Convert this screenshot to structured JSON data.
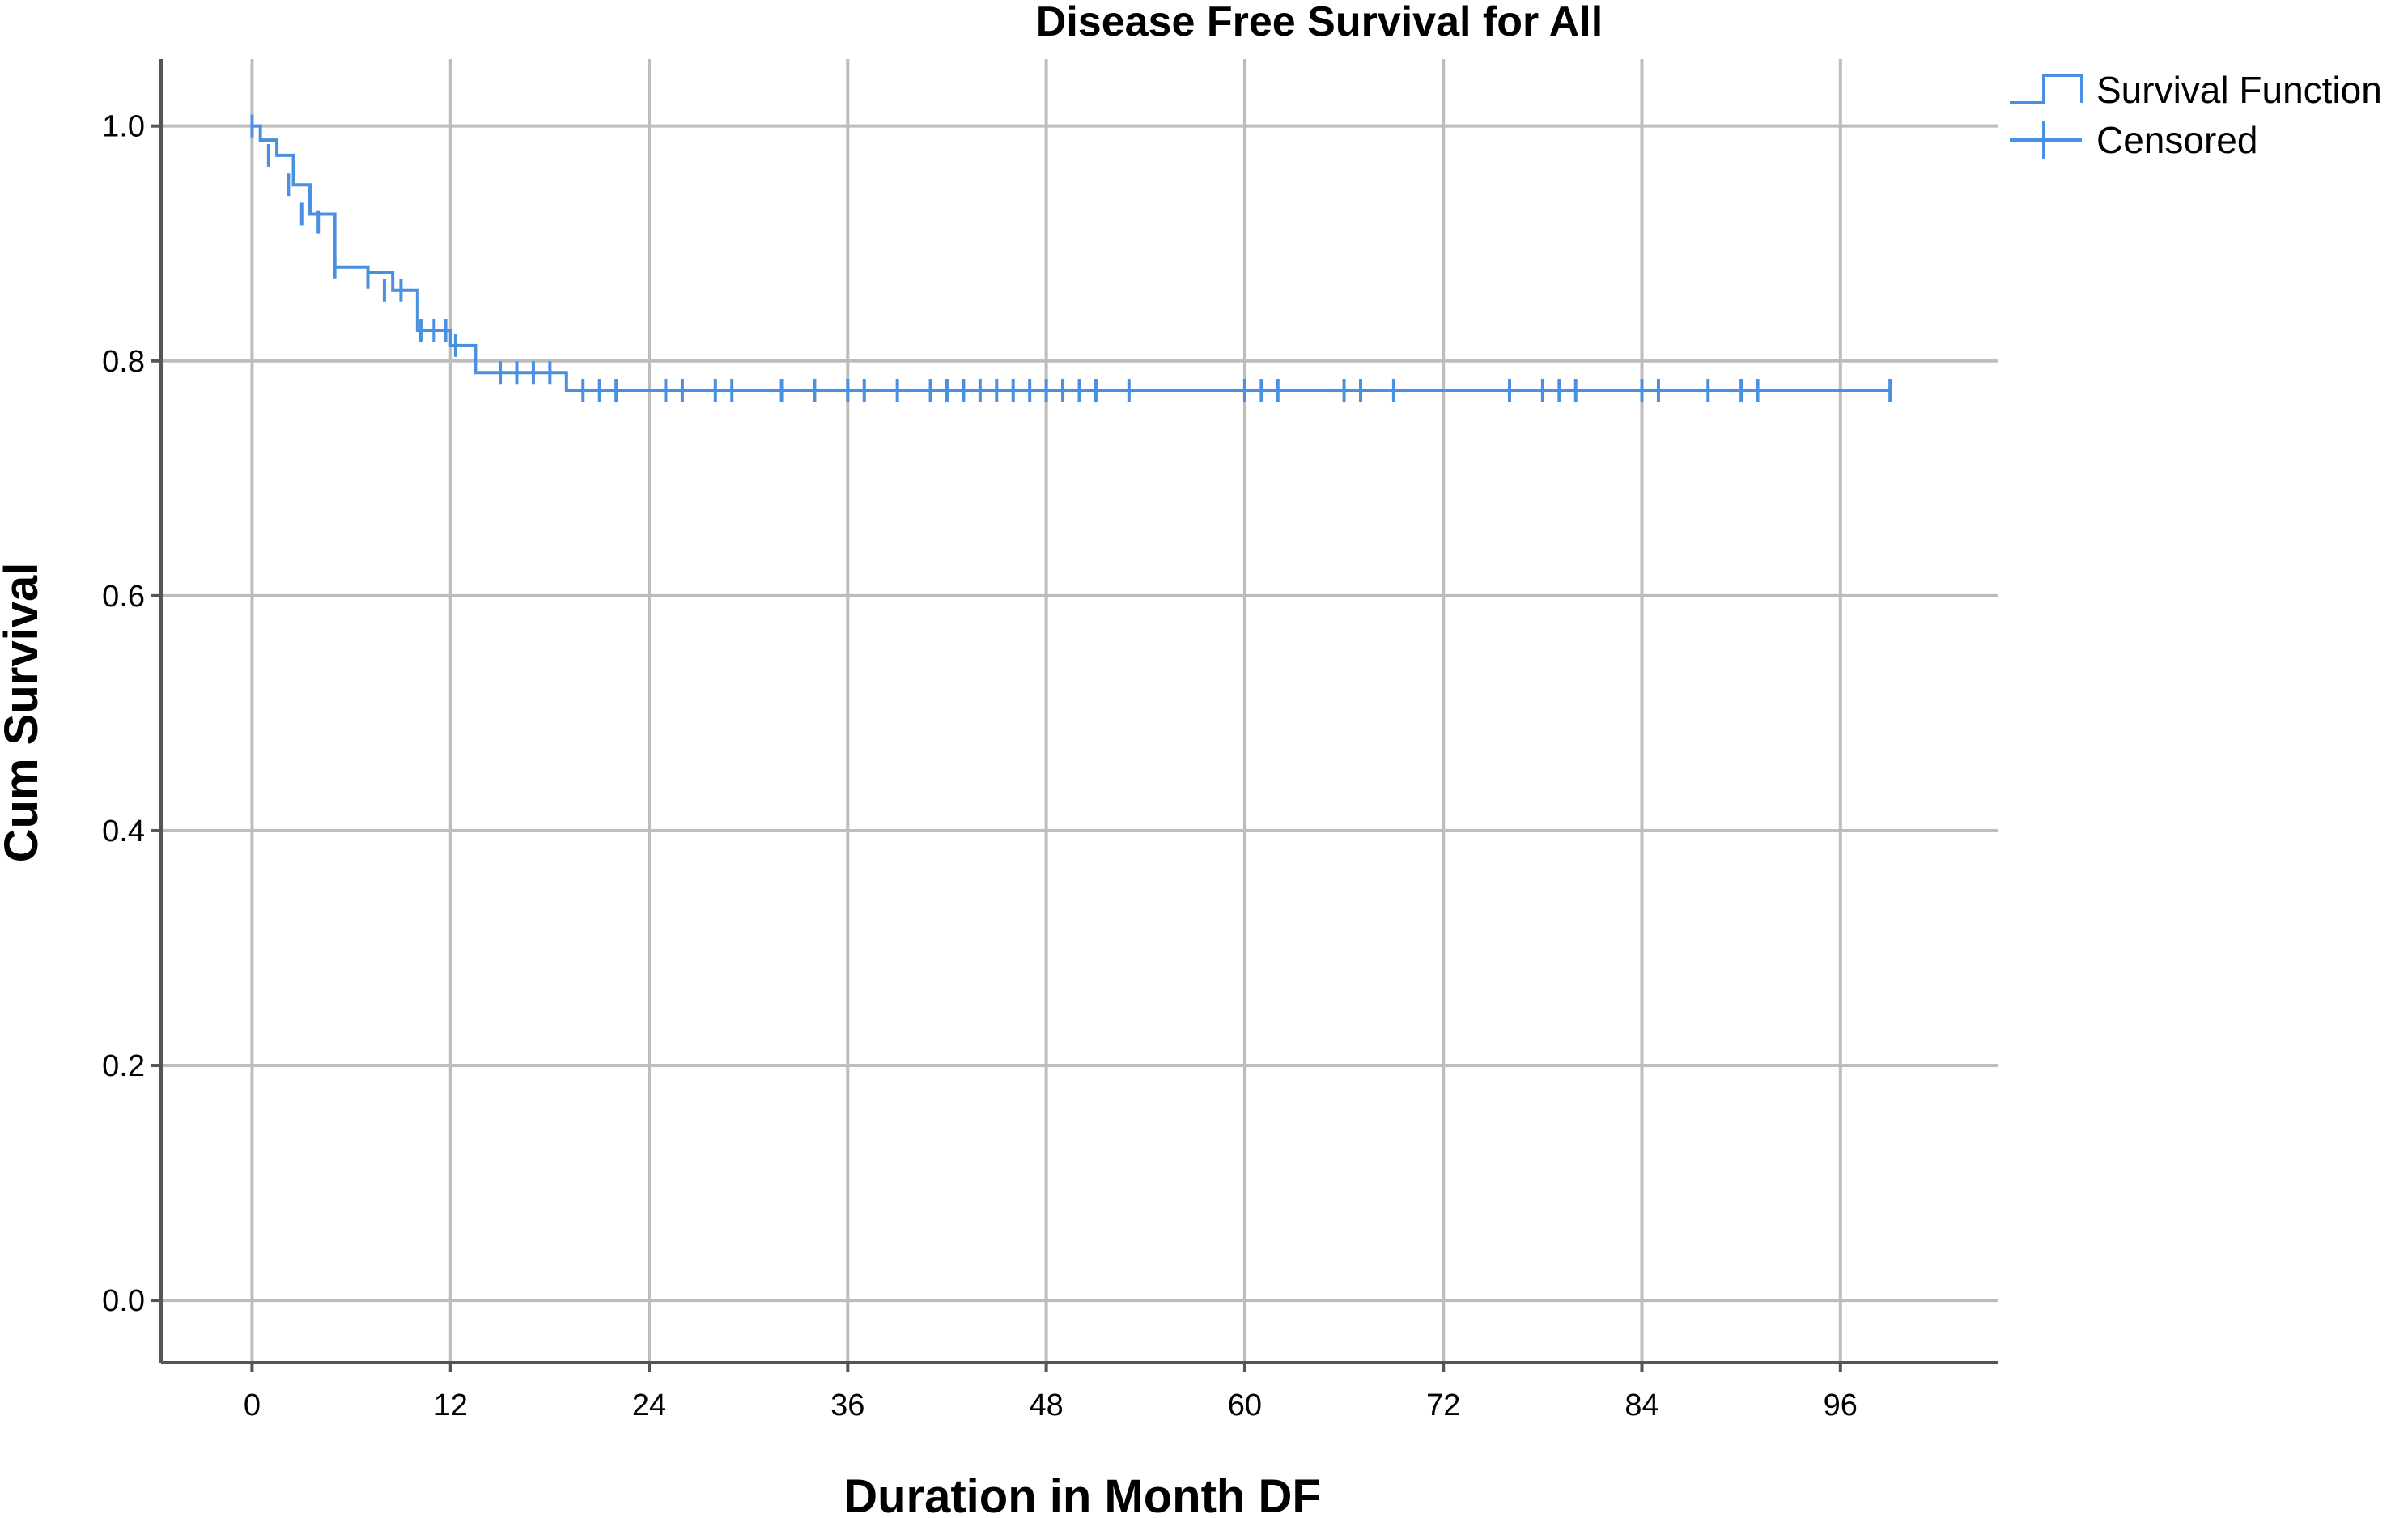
{
  "chart_data": {
    "type": "line",
    "title": "Disease Free Survival for All",
    "xlabel": "Duration in Month DF",
    "ylabel": "Cum Survival",
    "xlim": [
      -5.5,
      105.5
    ],
    "ylim": [
      -0.053,
      1.057
    ],
    "x_ticks": [
      0,
      12,
      24,
      36,
      48,
      60,
      72,
      84,
      96
    ],
    "y_ticks": [
      0.0,
      0.2,
      0.4,
      0.6,
      0.8,
      1.0
    ],
    "x_tick_labels": [
      "0",
      "12",
      "24",
      "36",
      "48",
      "60",
      "72",
      "84",
      "96"
    ],
    "y_tick_labels": [
      "0.0",
      "0.2",
      "0.4",
      "0.6",
      "0.8",
      "1.0"
    ],
    "grid": true,
    "legend_position": "top-right",
    "line_color": "#4a90e2",
    "series": [
      {
        "name": "Survival Function",
        "style": "step",
        "x": [
          0,
          0.5,
          1.5,
          2.5,
          3.5,
          5,
          7,
          8.5,
          10,
          12,
          13.5,
          19,
          99
        ],
        "y": [
          1.0,
          0.988,
          0.975,
          0.95,
          0.925,
          0.88,
          0.875,
          0.86,
          0.826,
          0.813,
          0.79,
          0.775,
          0.775
        ]
      },
      {
        "name": "Censored",
        "style": "marker",
        "x": [
          0,
          1,
          2.2,
          3,
          4,
          5,
          7,
          8,
          9,
          10.2,
          11,
          11.7,
          12.3,
          15,
          16,
          17,
          18,
          20,
          21,
          22,
          25,
          26,
          28,
          29,
          32,
          34,
          36,
          37,
          39,
          41,
          42,
          43,
          44,
          45,
          46,
          47,
          48,
          49,
          50,
          51,
          53,
          60,
          61,
          62,
          66,
          67,
          69,
          76,
          78,
          79,
          80,
          84,
          85,
          88,
          90,
          91,
          99
        ],
        "y": [
          1.0,
          0.975,
          0.95,
          0.925,
          0.918,
          0.88,
          0.871,
          0.86,
          0.86,
          0.826,
          0.826,
          0.826,
          0.813,
          0.79,
          0.79,
          0.79,
          0.79,
          0.775,
          0.775,
          0.775,
          0.775,
          0.775,
          0.775,
          0.775,
          0.775,
          0.775,
          0.775,
          0.775,
          0.775,
          0.775,
          0.775,
          0.775,
          0.775,
          0.775,
          0.775,
          0.775,
          0.775,
          0.775,
          0.775,
          0.775,
          0.775,
          0.775,
          0.775,
          0.775,
          0.775,
          0.775,
          0.775,
          0.775,
          0.775,
          0.775,
          0.775,
          0.775,
          0.775,
          0.775,
          0.775,
          0.775,
          0.775
        ]
      }
    ]
  }
}
